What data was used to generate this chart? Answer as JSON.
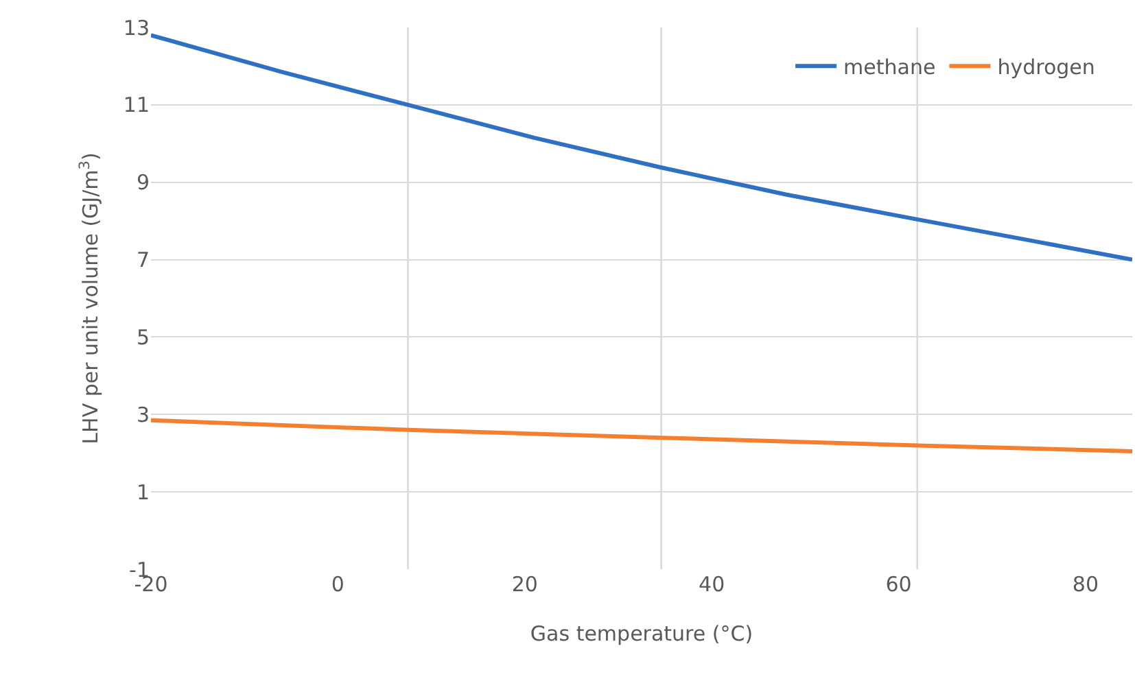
{
  "chart_data": {
    "type": "line",
    "xlabel": "Gas temperature (°C)",
    "ylabel": "LHV per unit volume (GJ/m$^{3}$)",
    "xlim": [
      -20,
      85
    ],
    "ylim": [
      -1,
      13
    ],
    "xticks": [
      -20,
      0,
      20,
      40,
      60,
      80,
      {
        "value": 7.5,
        "label": null
      },
      {
        "value": 34.6,
        "label": null
      },
      {
        "value": 62,
        "label": null
      }
    ],
    "yticks": [
      -1,
      1,
      3,
      5,
      7,
      9,
      11,
      13
    ],
    "grid": true,
    "legend": "top right",
    "line_style": "solid",
    "marker": "none",
    "series": [
      {
        "name": "methane",
        "color": "#2f6fc4",
        "x": [
          -20,
          -6,
          7.5,
          21,
          34.6,
          48,
          62,
          74,
          85
        ],
        "values": [
          12.8,
          11.85,
          11.0,
          10.15,
          9.38,
          8.68,
          8.04,
          7.5,
          7.0
        ]
      },
      {
        "name": "hydrogen",
        "color": "#f4802f",
        "x": [
          -20,
          7.5,
          34.6,
          62,
          85
        ],
        "values": [
          2.85,
          2.6,
          2.4,
          2.2,
          2.05
        ]
      }
    ]
  }
}
